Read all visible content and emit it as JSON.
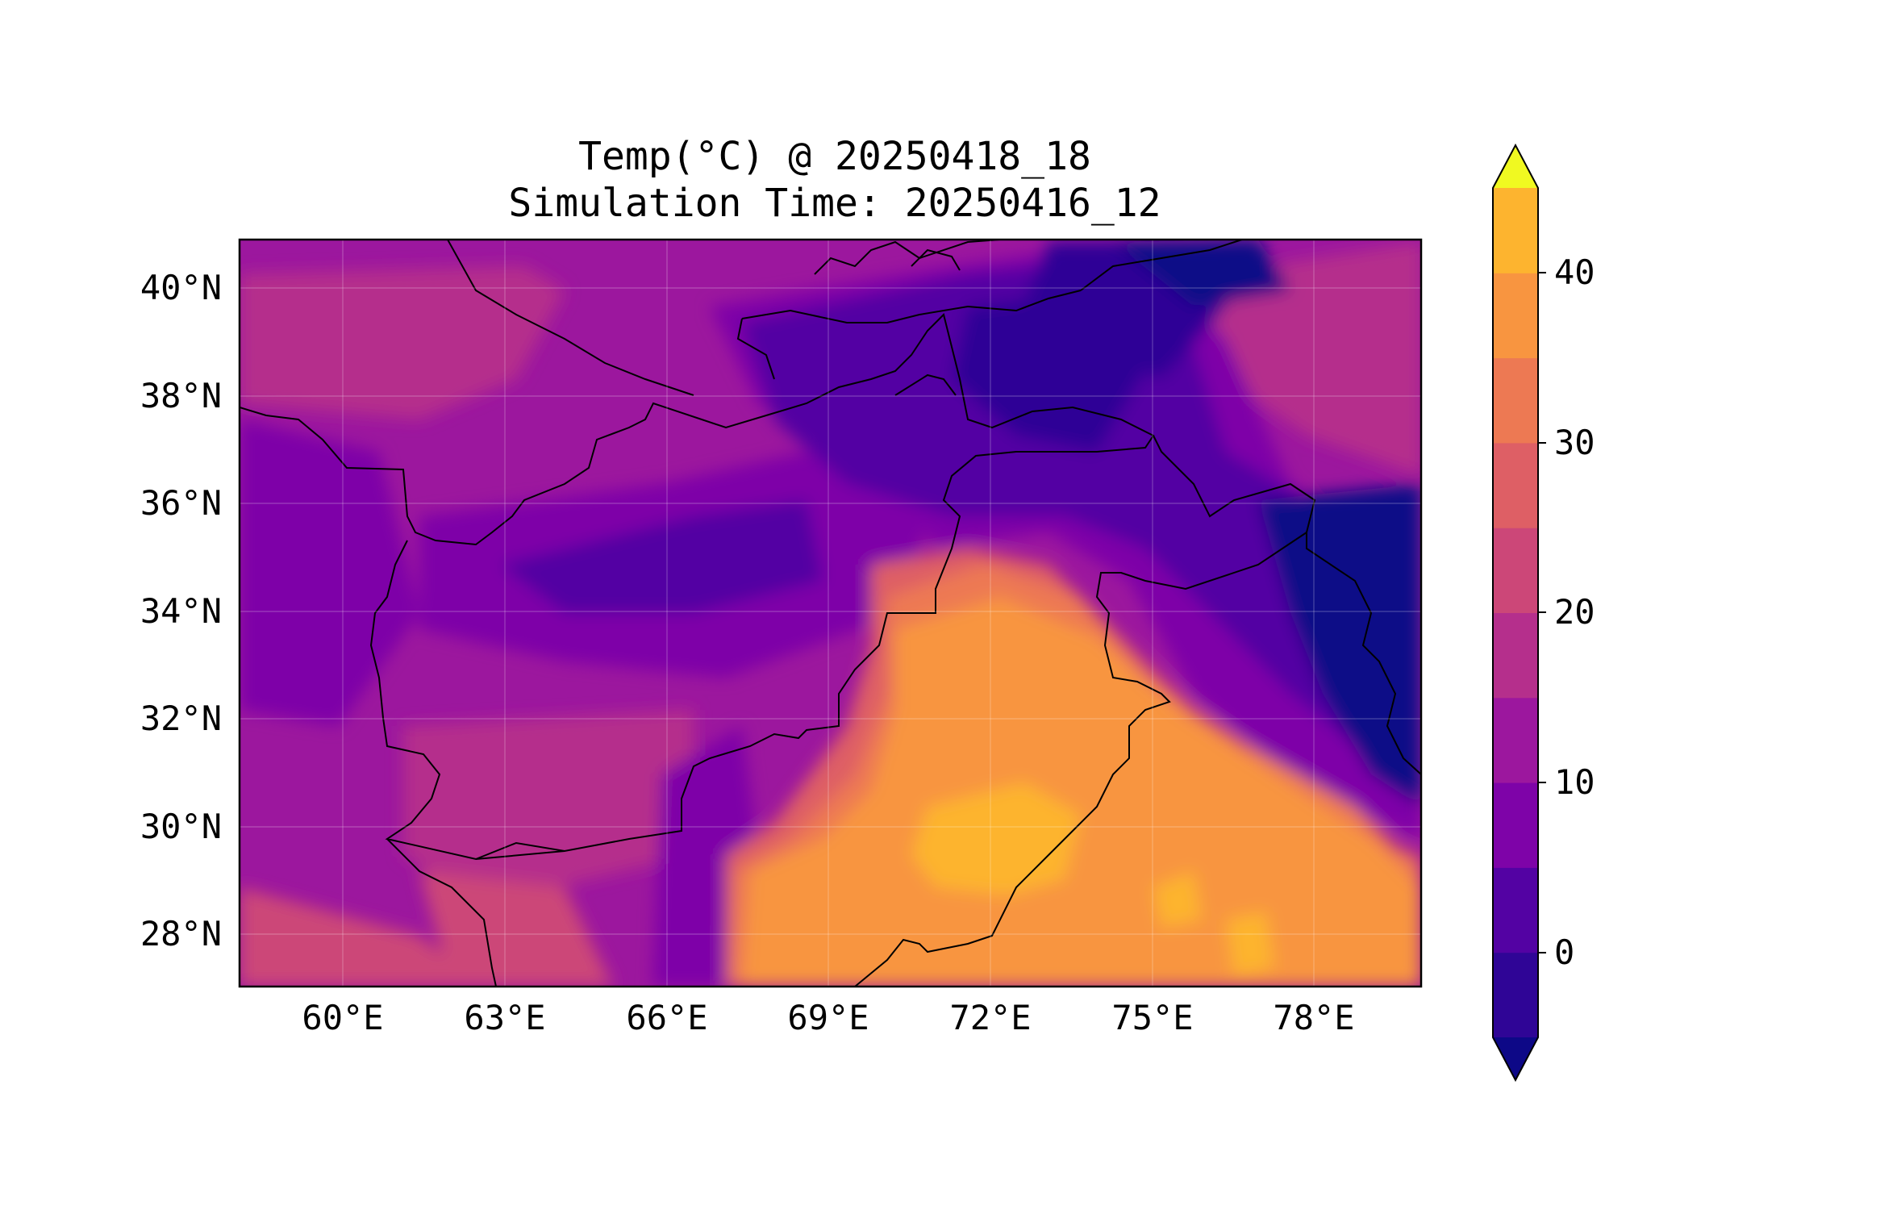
{
  "title": {
    "line1": "Temp(°C) @ 20250418_18",
    "line2": "Simulation Time: 20250416_12"
  },
  "map": {
    "region": "Afghanistan / Pakistan / northern India",
    "x_ticks": [
      "60°E",
      "63°E",
      "66°E",
      "69°E",
      "72°E",
      "75°E",
      "78°E"
    ],
    "y_ticks": [
      "40°N",
      "38°N",
      "36°N",
      "34°N",
      "32°N",
      "30°N",
      "28°N"
    ],
    "lon_range": [
      58.1,
      80.0
    ],
    "lat_range": [
      27.0,
      40.9
    ],
    "grid": true,
    "coastlines_borders": true
  },
  "colorbar": {
    "ticks": [
      "40",
      "30",
      "20",
      "10",
      "0"
    ],
    "levels": [
      -5,
      0,
      5,
      10,
      15,
      20,
      25,
      30,
      35,
      40,
      45
    ],
    "extend": "both",
    "colormap": "plasma",
    "colors": [
      "#0d0887",
      "#2f0596",
      "#5302a3",
      "#7e03a8",
      "#9c179e",
      "#b52f8c",
      "#cc4778",
      "#de5f65",
      "#ed7953",
      "#f89540",
      "#fdb42f",
      "#f0f921"
    ]
  }
}
